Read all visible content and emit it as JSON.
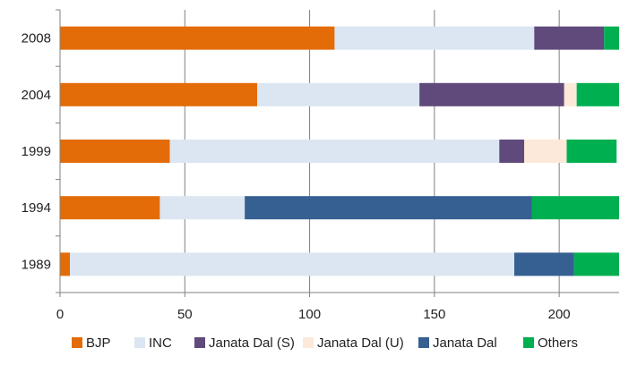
{
  "chart_data": {
    "type": "bar",
    "orientation": "horizontal",
    "stacked": true,
    "categories": [
      "2008",
      "2004",
      "1999",
      "1994",
      "1989"
    ],
    "series": [
      {
        "name": "BJP",
        "color": "#E36C09",
        "values": [
          110,
          79,
          44,
          40,
          4
        ]
      },
      {
        "name": "INC",
        "color": "#DCE6F2",
        "values": [
          80,
          65,
          132,
          34,
          178
        ]
      },
      {
        "name": "Janata Dal (S)",
        "color": "#604A7B",
        "values": [
          28,
          58,
          10,
          0,
          0
        ]
      },
      {
        "name": "Janata Dal (U)",
        "color": "#FDE9D9",
        "values": [
          0,
          5,
          17,
          0,
          0
        ]
      },
      {
        "name": "Janata Dal",
        "color": "#376092",
        "values": [
          0,
          0,
          0,
          115,
          24
        ]
      },
      {
        "name": "Others",
        "color": "#00B050",
        "values": [
          6,
          17,
          20,
          35,
          18
        ]
      }
    ],
    "xlim": [
      0,
      224
    ],
    "xticks": [
      "0",
      "50",
      "100",
      "150",
      "200"
    ],
    "xtick_values": [
      0,
      50,
      100,
      150,
      200
    ],
    "grid": "vertical",
    "legend_position": "bottom"
  }
}
